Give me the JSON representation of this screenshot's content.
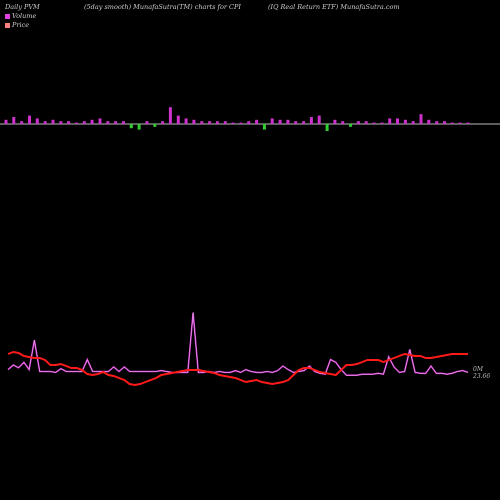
{
  "header": {
    "left": "Daily PVM",
    "center_left": "(5day smooth) MunafaSutra(TM) charts for CPI",
    "center_right": "(IQ Real Return  ETF) MunafaSutra.com"
  },
  "legend": {
    "volume_label": "Volume",
    "price_label": "Price",
    "volume_color": "#e040e0",
    "price_color": "#ff8080"
  },
  "chart_data": {
    "type": "line",
    "colors": {
      "volume_up": "#cc33cc",
      "volume_down": "#33cc33",
      "volume_line": "#cc33cc",
      "price_line": "#ff1a1a",
      "baseline": "#bbbbbb"
    },
    "volume_bars": [
      {
        "v": 3,
        "dir": "up"
      },
      {
        "v": 5,
        "dir": "up"
      },
      {
        "v": 2,
        "dir": "up"
      },
      {
        "v": 6,
        "dir": "up"
      },
      {
        "v": 4,
        "dir": "up"
      },
      {
        "v": 2,
        "dir": "up"
      },
      {
        "v": 3,
        "dir": "up"
      },
      {
        "v": 2,
        "dir": "up"
      },
      {
        "v": 2,
        "dir": "up"
      },
      {
        "v": 1,
        "dir": "up"
      },
      {
        "v": 2,
        "dir": "up"
      },
      {
        "v": 3,
        "dir": "up"
      },
      {
        "v": 4,
        "dir": "up"
      },
      {
        "v": 2,
        "dir": "up"
      },
      {
        "v": 2,
        "dir": "up"
      },
      {
        "v": 2,
        "dir": "up"
      },
      {
        "v": 3,
        "dir": "down"
      },
      {
        "v": 4,
        "dir": "down"
      },
      {
        "v": 2,
        "dir": "up"
      },
      {
        "v": 2,
        "dir": "down"
      },
      {
        "v": 2,
        "dir": "up"
      },
      {
        "v": 12,
        "dir": "up"
      },
      {
        "v": 6,
        "dir": "up"
      },
      {
        "v": 4,
        "dir": "up"
      },
      {
        "v": 3,
        "dir": "up"
      },
      {
        "v": 2,
        "dir": "up"
      },
      {
        "v": 2,
        "dir": "up"
      },
      {
        "v": 2,
        "dir": "up"
      },
      {
        "v": 2,
        "dir": "up"
      },
      {
        "v": 1,
        "dir": "up"
      },
      {
        "v": 1,
        "dir": "up"
      },
      {
        "v": 2,
        "dir": "up"
      },
      {
        "v": 3,
        "dir": "up"
      },
      {
        "v": 4,
        "dir": "down"
      },
      {
        "v": 4,
        "dir": "up"
      },
      {
        "v": 3,
        "dir": "up"
      },
      {
        "v": 3,
        "dir": "up"
      },
      {
        "v": 2,
        "dir": "up"
      },
      {
        "v": 2,
        "dir": "up"
      },
      {
        "v": 5,
        "dir": "up"
      },
      {
        "v": 6,
        "dir": "up"
      },
      {
        "v": 5,
        "dir": "down"
      },
      {
        "v": 3,
        "dir": "up"
      },
      {
        "v": 2,
        "dir": "up"
      },
      {
        "v": 2,
        "dir": "down"
      },
      {
        "v": 2,
        "dir": "up"
      },
      {
        "v": 2,
        "dir": "up"
      },
      {
        "v": 1,
        "dir": "up"
      },
      {
        "v": 1,
        "dir": "up"
      },
      {
        "v": 4,
        "dir": "up"
      },
      {
        "v": 4,
        "dir": "up"
      },
      {
        "v": 3,
        "dir": "up"
      },
      {
        "v": 2,
        "dir": "up"
      },
      {
        "v": 7,
        "dir": "up"
      },
      {
        "v": 3,
        "dir": "up"
      },
      {
        "v": 2,
        "dir": "up"
      },
      {
        "v": 2,
        "dir": "up"
      },
      {
        "v": 1,
        "dir": "up"
      },
      {
        "v": 1,
        "dir": "up"
      },
      {
        "v": 1,
        "dir": "up"
      }
    ],
    "volume_smooth": [
      8,
      13,
      10,
      16,
      8,
      40,
      6,
      6,
      6,
      5,
      9,
      6,
      6,
      6,
      6,
      19,
      6,
      6,
      6,
      6,
      11,
      6,
      11,
      6,
      6,
      6,
      6,
      6,
      6,
      7,
      6,
      5,
      5,
      5,
      5,
      70,
      5,
      5,
      6,
      5,
      6,
      5,
      5,
      7,
      5,
      8,
      6,
      5,
      5,
      6,
      5,
      7,
      12,
      8,
      5,
      6,
      7,
      12,
      6,
      4,
      3,
      19,
      16,
      8,
      2,
      2,
      2,
      3,
      3,
      3,
      4,
      3,
      22,
      11,
      5,
      6,
      30,
      5,
      4,
      4,
      12,
      4,
      4,
      3,
      4,
      6,
      7,
      5
    ],
    "price_smooth": [
      23.66,
      23.68,
      23.67,
      23.64,
      23.63,
      23.62,
      23.62,
      23.6,
      23.55,
      23.55,
      23.56,
      23.54,
      23.52,
      23.52,
      23.5,
      23.46,
      23.45,
      23.46,
      23.48,
      23.45,
      23.44,
      23.42,
      23.4,
      23.36,
      23.35,
      23.36,
      23.38,
      23.4,
      23.42,
      23.45,
      23.46,
      23.47,
      23.48,
      23.49,
      23.5,
      23.5,
      23.5,
      23.49,
      23.48,
      23.47,
      23.45,
      23.44,
      23.43,
      23.42,
      23.4,
      23.38,
      23.39,
      23.4,
      23.38,
      23.37,
      23.36,
      23.37,
      23.38,
      23.4,
      23.45,
      23.5,
      23.52,
      23.52,
      23.5,
      23.48,
      23.47,
      23.46,
      23.45,
      23.5,
      23.55,
      23.55,
      23.56,
      23.58,
      23.6,
      23.6,
      23.6,
      23.58,
      23.6,
      23.62,
      23.64,
      23.66,
      23.65,
      23.64,
      23.64,
      23.62,
      23.62,
      23.63,
      23.64,
      23.65,
      23.66,
      23.66,
      23.66,
      23.66
    ],
    "price_range": [
      23.2,
      24.2
    ],
    "price_tag": "23.66",
    "volume_tag": "0M"
  }
}
